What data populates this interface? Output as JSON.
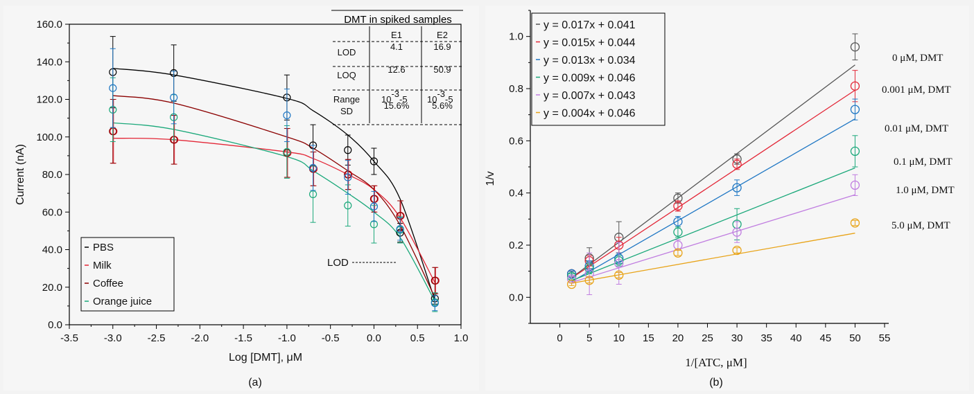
{
  "chart_data": [
    {
      "type": "scatter",
      "caption": "(a)",
      "xlabel": "Log [DMT], μM",
      "ylabel": "Current (nA)",
      "xlim": [
        -3.5,
        1.0
      ],
      "ylim": [
        0,
        160
      ],
      "xticks": [
        "-3.5",
        "-3.0",
        "-2.5",
        "-2.0",
        "-1.5",
        "-1.0",
        "-0.5",
        "0.0",
        "0.5",
        "1.0"
      ],
      "yticks": [
        "0.0",
        "20.0",
        "40.0",
        "60.0",
        "80.0",
        "100.0",
        "120.0",
        "140.0",
        "160.0"
      ],
      "legend_placement": "bottom-left",
      "series": [
        {
          "name": "PBS",
          "color": "#000000",
          "x": [
            -3.0,
            -2.3,
            -1.0,
            -0.7,
            -0.3,
            0.0,
            0.3,
            0.7
          ],
          "y": [
            134.5,
            134,
            121,
            95.5,
            93,
            87,
            49,
            14
          ],
          "err": [
            19,
            15,
            12,
            11,
            8,
            7,
            5,
            3
          ],
          "fit": [
            136.5,
            133,
            120.5,
            114,
            101,
            87,
            67,
            13
          ]
        },
        {
          "name": "Milk",
          "color": "#e32636",
          "x": [
            -3.0,
            -2.3,
            -1.0,
            -0.7,
            -0.3,
            0.0,
            0.3,
            0.7
          ],
          "y": [
            103,
            98.5,
            91.5,
            83,
            80,
            67,
            58,
            23.5
          ],
          "err": [
            17,
            13,
            13,
            9,
            8,
            7,
            8,
            7
          ],
          "fit": [
            99.3,
            98.5,
            92,
            88.5,
            80,
            72,
            57,
            22.5
          ]
        },
        {
          "name": "Coffee",
          "color": "#8b0000",
          "x": [
            -3.0,
            -2.3,
            -1.0,
            -0.7,
            -0.3,
            0.0,
            0.3,
            0.7
          ],
          "y": [
            103,
            98.5,
            91.5,
            83,
            80,
            67,
            58,
            23.5
          ],
          "err": [
            17,
            13,
            13,
            9,
            8,
            7,
            8,
            7
          ],
          "fit": [
            122,
            118,
            100,
            94,
            82,
            72,
            53,
            14.5
          ]
        },
        {
          "name": "Orange juice",
          "color": "#1aa87a",
          "x": [
            -3.0,
            -2.3,
            -1.0,
            -0.7,
            -0.3,
            0.0,
            0.3,
            0.7
          ],
          "y": [
            114.5,
            110.5,
            92,
            69.5,
            63.5,
            53.5,
            50.5,
            12
          ],
          "err": [
            17,
            12,
            14,
            15,
            11,
            10,
            7,
            5
          ],
          "fit": [
            107.5,
            104,
            89.5,
            82,
            70,
            60,
            46.5,
            12.5
          ]
        },
        {
          "name": "",
          "color": "#1f77c4",
          "x": [
            -3.0,
            -2.3,
            -1.0,
            -0.7,
            -0.3,
            0.0,
            0.3,
            0.7
          ],
          "y": [
            126,
            121,
            111.5,
            83.5,
            78.5,
            63,
            51,
            11.5
          ],
          "err": [
            21,
            14,
            14,
            12,
            9,
            8,
            6,
            4
          ],
          "fit": null
        }
      ],
      "inset_table": {
        "title": "DMT in spiked samples",
        "columns": [
          "",
          "E1",
          "E2"
        ],
        "rows": [
          {
            "label": "LOD",
            "e1": "4.1",
            "e2": "16.9"
          },
          {
            "label": "LOQ",
            "e1": "12.6",
            "e2": "50.9"
          },
          {
            "label": "Range",
            "e1": "10",
            "e1sup": "-3",
            "e1suf": "-5",
            "e2": "10",
            "e2sup": "-3",
            "e2suf": "-5"
          },
          {
            "label": "SD",
            "e1": "15.6%",
            "e2": "5.6%"
          }
        ]
      },
      "annotations": [
        {
          "text": "LOD",
          "x": 0.55,
          "y": 33
        }
      ]
    },
    {
      "type": "scatter",
      "caption": "(b)",
      "xlabel": "1/[ATC, μM]",
      "ylabel": "1/v",
      "xlim": [
        -5,
        55
      ],
      "ylim": [
        -0.1,
        1.1
      ],
      "xticks": [
        "0",
        "5",
        "10",
        "15",
        "20",
        "25",
        "30",
        "35",
        "40",
        "45",
        "50",
        "55"
      ],
      "yticks": [
        "0.0",
        "0.2",
        "0.4",
        "0.6",
        "0.8",
        "1.0"
      ],
      "legend_placement": "top-left",
      "x": [
        2,
        5,
        10,
        20,
        30,
        50
      ],
      "series": [
        {
          "name": "y = 0.017x + 0.041",
          "label": "0 μM, DMT",
          "color": "#555555",
          "slope": 0.017,
          "intercept": 0.041,
          "y": [
            0.09,
            0.15,
            0.23,
            0.38,
            0.53,
            0.96
          ],
          "err": [
            0.01,
            0.04,
            0.06,
            0.02,
            0.02,
            0.05
          ]
        },
        {
          "name": "y = 0.015x + 0.044",
          "label": "0.001 μM, DMT",
          "color": "#e32636",
          "slope": 0.015,
          "intercept": 0.044,
          "y": [
            0.09,
            0.14,
            0.2,
            0.35,
            0.51,
            0.81
          ],
          "err": [
            0.01,
            0.02,
            0.03,
            0.02,
            0.02,
            0.06
          ]
        },
        {
          "name": "y = 0.013x + 0.034",
          "label": "0.01 μM, DMT",
          "color": "#1f77c4",
          "slope": 0.013,
          "intercept": 0.034,
          "y": [
            0.09,
            0.12,
            0.15,
            0.29,
            0.42,
            0.72
          ],
          "err": [
            0.01,
            0.02,
            0.02,
            0.02,
            0.03,
            0.04
          ]
        },
        {
          "name": "y = 0.009x + 0.046",
          "label": "0.1 μM, DMT",
          "color": "#1aa87a",
          "slope": 0.009,
          "intercept": 0.046,
          "y": [
            0.08,
            0.11,
            0.14,
            0.25,
            0.28,
            0.56
          ],
          "err": [
            0.01,
            0.02,
            0.02,
            0.02,
            0.06,
            0.06
          ]
        },
        {
          "name": "y = 0.007x + 0.043",
          "label": "1.0 μM, DMT",
          "color": "#c07de0",
          "slope": 0.007,
          "intercept": 0.043,
          "y": [
            0.07,
            0.09,
            0.13,
            0.2,
            0.25,
            0.43
          ],
          "err": [
            0.01,
            0.08,
            0.08,
            0.02,
            0.04,
            0.04
          ]
        },
        {
          "name": "y = 0.004x + 0.046",
          "label": "5.0 μM, DMT",
          "color": "#e8a317",
          "slope": 0.004,
          "intercept": 0.046,
          "y": [
            0.05,
            0.065,
            0.085,
            0.17,
            0.18,
            0.285
          ],
          "err": [
            0.005,
            0.01,
            0.01,
            0.01,
            0.01,
            0.01
          ]
        }
      ]
    }
  ]
}
